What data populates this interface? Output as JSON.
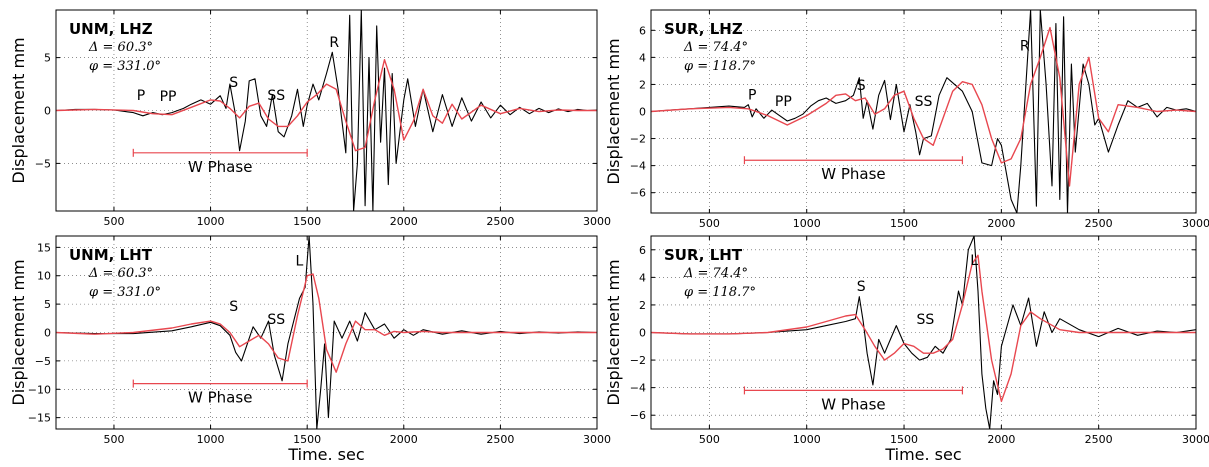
{
  "colors": {
    "observed": "#000000",
    "synthetic": "#e8474f",
    "wphase_bracket": "#e8474f"
  },
  "chart_data": [
    {
      "type": "line",
      "station": "UNM, LHZ",
      "delta": "Δ = 60.3°",
      "phi": "φ = 331.0°",
      "ylabel": "Displacement mm",
      "xlabel": "",
      "xlim": [
        200,
        3000
      ],
      "ylim": [
        -9.5,
        9.5
      ],
      "yticks": [
        -5,
        0,
        5
      ],
      "xticks": [
        500,
        1000,
        1500,
        2000,
        2500,
        3000
      ],
      "wphase": {
        "label": "W Phase",
        "x_start": 600,
        "x_end": 1500,
        "y": -4.0
      },
      "phases": [
        {
          "label": "P",
          "x": 640,
          "y": 1.0
        },
        {
          "label": "PP",
          "x": 780,
          "y": 0.9
        },
        {
          "label": "S",
          "x": 1120,
          "y": 2.2
        },
        {
          "label": "SS",
          "x": 1340,
          "y": 1.0
        },
        {
          "label": "R",
          "x": 1640,
          "y": 6.0
        }
      ],
      "series": [
        {
          "name": "observed",
          "x": [
            200,
            300,
            400,
            500,
            560,
            600,
            650,
            700,
            750,
            800,
            860,
            900,
            950,
            1000,
            1050,
            1080,
            1100,
            1130,
            1150,
            1180,
            1200,
            1230,
            1260,
            1290,
            1320,
            1350,
            1380,
            1420,
            1450,
            1480,
            1500,
            1530,
            1560,
            1600,
            1630,
            1660,
            1700,
            1720,
            1740,
            1760,
            1780,
            1800,
            1820,
            1840,
            1860,
            1880,
            1900,
            1920,
            1940,
            1960,
            1980,
            2000,
            2020,
            2060,
            2100,
            2150,
            2200,
            2250,
            2300,
            2350,
            2400,
            2450,
            2500,
            2550,
            2600,
            2650,
            2700,
            2750,
            2800,
            2850,
            2900,
            2950,
            3000
          ],
          "y": [
            0,
            0.1,
            0.1,
            0.05,
            -0.1,
            -0.2,
            -0.5,
            -0.2,
            -0.4,
            -0.2,
            0.2,
            0.6,
            1.0,
            0.6,
            1.4,
            0.2,
            2.5,
            -0.5,
            -3.8,
            -1.0,
            2.8,
            3.0,
            -0.5,
            -1.5,
            1.5,
            -2.0,
            -2.5,
            -0.5,
            2.0,
            -1.5,
            0.5,
            2.5,
            1.0,
            3.5,
            5.5,
            2.0,
            -4.0,
            9.0,
            -9.5,
            -5.0,
            9.5,
            -9.0,
            5.0,
            -9.5,
            8.0,
            -3.0,
            4.0,
            -7.0,
            3.5,
            -5.0,
            -2.0,
            1.0,
            3.0,
            -1.5,
            2.0,
            -2.0,
            1.5,
            -1.5,
            1.2,
            -1.0,
            0.8,
            -0.7,
            0.5,
            -0.4,
            0.3,
            -0.3,
            0.2,
            -0.2,
            0.15,
            -0.1,
            0.1,
            0,
            0.05
          ]
        },
        {
          "name": "synthetic",
          "x": [
            200,
            400,
            600,
            700,
            800,
            900,
            1000,
            1050,
            1100,
            1150,
            1200,
            1250,
            1300,
            1350,
            1400,
            1450,
            1500,
            1550,
            1600,
            1650,
            1700,
            1750,
            1800,
            1850,
            1900,
            1950,
            2000,
            2050,
            2100,
            2150,
            2200,
            2250,
            2300,
            2400,
            2500,
            2600,
            2700,
            2800,
            2900,
            3000
          ],
          "y": [
            0,
            0.1,
            0,
            -0.3,
            -0.4,
            0.3,
            1.0,
            0.9,
            0.2,
            -0.7,
            0.4,
            0.7,
            -0.8,
            -1.5,
            -1.5,
            -0.5,
            0.8,
            1.5,
            2.5,
            2.0,
            -1.0,
            -3.8,
            -3.5,
            1.0,
            4.8,
            2.0,
            -2.8,
            -1.0,
            2.0,
            -0.5,
            -1.2,
            0.6,
            -0.8,
            0.5,
            -0.3,
            0.2,
            -0.1,
            0.05,
            0,
            0
          ]
        }
      ]
    },
    {
      "type": "line",
      "station": "SUR, LHZ",
      "delta": "Δ = 74.4°",
      "phi": "φ = 118.7°",
      "ylabel": "Displacement mm",
      "xlabel": "",
      "xlim": [
        200,
        3000
      ],
      "ylim": [
        -7.5,
        7.5
      ],
      "yticks": [
        -6,
        -4,
        -2,
        0,
        2,
        4,
        6
      ],
      "xticks": [
        500,
        1000,
        1500,
        2000,
        2500,
        3000
      ],
      "wphase": {
        "label": "W Phase",
        "x_start": 680,
        "x_end": 1800,
        "y": -3.6
      },
      "phases": [
        {
          "label": "P",
          "x": 720,
          "y": 0.9
        },
        {
          "label": "PP",
          "x": 880,
          "y": 0.4
        },
        {
          "label": "S",
          "x": 1280,
          "y": 1.6
        },
        {
          "label": "SS",
          "x": 1600,
          "y": 0.4
        },
        {
          "label": "R",
          "x": 2120,
          "y": 4.5
        }
      ],
      "series": [
        {
          "name": "observed",
          "x": [
            200,
            300,
            400,
            500,
            600,
            680,
            700,
            720,
            740,
            780,
            820,
            860,
            900,
            940,
            980,
            1020,
            1060,
            1100,
            1150,
            1200,
            1240,
            1270,
            1290,
            1310,
            1340,
            1370,
            1400,
            1430,
            1460,
            1500,
            1530,
            1560,
            1580,
            1600,
            1640,
            1680,
            1720,
            1760,
            1800,
            1850,
            1900,
            1950,
            1980,
            2000,
            2050,
            2080,
            2100,
            2150,
            2180,
            2200,
            2230,
            2260,
            2280,
            2300,
            2320,
            2340,
            2360,
            2380,
            2420,
            2450,
            2480,
            2500,
            2550,
            2600,
            2650,
            2700,
            2750,
            2800,
            2850,
            2900,
            2950,
            3000
          ],
          "y": [
            0,
            0.1,
            0.2,
            0.3,
            0.4,
            0.3,
            0.5,
            -0.4,
            0.2,
            -0.5,
            0.1,
            -0.3,
            -0.7,
            -0.5,
            -0.2,
            0.4,
            0.8,
            1.0,
            0.6,
            0.8,
            1.2,
            2.5,
            -0.5,
            0.8,
            -1.3,
            1.2,
            2.3,
            -0.6,
            2.0,
            -1.5,
            0.5,
            -1.5,
            -3.2,
            -2.0,
            -1.8,
            1.2,
            2.5,
            2.0,
            1.5,
            0.0,
            -3.8,
            -4.0,
            -2.0,
            -2.5,
            -6.5,
            -7.5,
            -4.0,
            7.5,
            -7.0,
            7.5,
            2.0,
            -5.5,
            6.5,
            -6.5,
            7.0,
            -7.5,
            3.5,
            -3.0,
            3.5,
            2.0,
            -1.0,
            -0.5,
            -3.0,
            -1.0,
            0.8,
            0.3,
            0.6,
            -0.4,
            0.3,
            0.1,
            0.2,
            0.0
          ]
        },
        {
          "name": "synthetic",
          "x": [
            200,
            400,
            600,
            700,
            800,
            900,
            1000,
            1100,
            1150,
            1200,
            1250,
            1300,
            1350,
            1400,
            1450,
            1500,
            1550,
            1600,
            1650,
            1700,
            1750,
            1800,
            1850,
            1900,
            1950,
            2000,
            2050,
            2100,
            2150,
            2200,
            2250,
            2300,
            2350,
            2400,
            2450,
            2500,
            2550,
            2600,
            2700,
            2800,
            2900,
            3000
          ],
          "y": [
            0,
            0.2,
            0.3,
            0.2,
            -0.3,
            -1.0,
            -0.3,
            0.6,
            1.2,
            1.3,
            0.8,
            1.0,
            -0.2,
            0.2,
            1.2,
            1.5,
            -0.5,
            -2.0,
            -2.5,
            -0.5,
            1.5,
            2.2,
            2.0,
            0.5,
            -2.0,
            -3.8,
            -3.5,
            -2.0,
            2.0,
            4.0,
            6.2,
            2.5,
            -5.5,
            2.0,
            4.0,
            -0.5,
            -1.5,
            0.5,
            0.3,
            0.0,
            0.1,
            0.0
          ]
        }
      ]
    },
    {
      "type": "line",
      "station": "UNM, LHT",
      "delta": "Δ = 60.3°",
      "phi": "φ = 331.0°",
      "ylabel": "Displacement mm",
      "xlabel": "Time. sec",
      "xlim": [
        200,
        3000
      ],
      "ylim": [
        -17,
        17
      ],
      "yticks": [
        -15,
        -10,
        -5,
        0,
        5,
        10,
        15
      ],
      "xticks": [
        500,
        1000,
        1500,
        2000,
        2500,
        3000
      ],
      "wphase": {
        "label": "W Phase",
        "x_start": 600,
        "x_end": 1500,
        "y": -9.0
      },
      "phases": [
        {
          "label": "S",
          "x": 1120,
          "y": 3.8
        },
        {
          "label": "SS",
          "x": 1340,
          "y": 1.5
        },
        {
          "label": "L",
          "x": 1460,
          "y": 11.8
        }
      ],
      "series": [
        {
          "name": "observed",
          "x": [
            200,
            400,
            600,
            800,
            900,
            1000,
            1050,
            1100,
            1130,
            1160,
            1190,
            1220,
            1260,
            1300,
            1330,
            1370,
            1400,
            1430,
            1460,
            1490,
            1510,
            1530,
            1550,
            1570,
            1590,
            1610,
            1640,
            1680,
            1720,
            1760,
            1800,
            1850,
            1900,
            1950,
            2000,
            2050,
            2100,
            2200,
            2300,
            2400,
            2500,
            2600,
            2700,
            2800,
            2900,
            3000
          ],
          "y": [
            0,
            -0.2,
            -0.2,
            0.3,
            1.0,
            1.8,
            1.2,
            -0.5,
            -3.5,
            -5.0,
            -2.0,
            1.0,
            -1.0,
            2.0,
            -4.0,
            -8.5,
            -2.0,
            2.0,
            6.0,
            8.0,
            17.0,
            5.0,
            -17.0,
            -10.0,
            -2.0,
            -15.0,
            2.0,
            -1.0,
            2.0,
            -1.5,
            3.5,
            0.5,
            1.5,
            -1.0,
            0.5,
            -0.5,
            0.5,
            -0.3,
            0.3,
            -0.3,
            0.2,
            -0.2,
            0.1,
            -0.1,
            0.1,
            0.0
          ]
        },
        {
          "name": "synthetic",
          "x": [
            200,
            400,
            600,
            800,
            900,
            1000,
            1050,
            1100,
            1150,
            1200,
            1250,
            1300,
            1350,
            1400,
            1450,
            1500,
            1530,
            1560,
            1600,
            1650,
            1700,
            1750,
            1800,
            1850,
            1900,
            1950,
            2000,
            2100,
            2200,
            2400,
            2600,
            2800,
            3000
          ],
          "y": [
            0,
            -0.3,
            0.0,
            0.8,
            1.5,
            2.0,
            1.5,
            0.0,
            -2.5,
            -1.5,
            -0.5,
            -2.0,
            -4.5,
            -5.0,
            3.0,
            10.0,
            10.3,
            6.0,
            -3.0,
            -7.0,
            -2.0,
            2.0,
            0.5,
            0.5,
            -0.5,
            0.2,
            0.0,
            0.2,
            0.0,
            0.0,
            0.0,
            0.0,
            0.0
          ]
        }
      ]
    },
    {
      "type": "line",
      "station": "SUR, LHT",
      "delta": "Δ = 74.4°",
      "phi": "φ = 118.7°",
      "ylabel": "Displacement mm",
      "xlabel": "Time. sec",
      "xlim": [
        200,
        3000
      ],
      "ylim": [
        -7,
        7
      ],
      "yticks": [
        -6,
        -4,
        -2,
        0,
        2,
        4,
        6
      ],
      "xticks": [
        500,
        1000,
        1500,
        2000,
        2500,
        3000
      ],
      "wphase": {
        "label": "W Phase",
        "x_start": 680,
        "x_end": 1800,
        "y": -4.2
      },
      "phases": [
        {
          "label": "S",
          "x": 1280,
          "y": 3.0
        },
        {
          "label": "SS",
          "x": 1610,
          "y": 0.6
        },
        {
          "label": "L",
          "x": 1860,
          "y": 4.9
        }
      ],
      "series": [
        {
          "name": "observed",
          "x": [
            200,
            400,
            600,
            800,
            1000,
            1100,
            1200,
            1250,
            1270,
            1290,
            1310,
            1340,
            1370,
            1400,
            1430,
            1460,
            1500,
            1540,
            1580,
            1620,
            1660,
            1700,
            1740,
            1780,
            1800,
            1830,
            1860,
            1880,
            1900,
            1920,
            1940,
            1960,
            1980,
            2000,
            2030,
            2060,
            2100,
            2140,
            2180,
            2220,
            2260,
            2300,
            2400,
            2500,
            2600,
            2700,
            2800,
            2900,
            3000
          ],
          "y": [
            0,
            -0.1,
            -0.1,
            0.0,
            0.2,
            0.5,
            0.8,
            1.0,
            2.6,
            0.8,
            -1.5,
            -3.8,
            -0.5,
            -1.5,
            -0.5,
            0.5,
            -0.8,
            -1.5,
            -2.0,
            -1.8,
            -1.0,
            -1.5,
            -0.5,
            3.0,
            2.0,
            6.0,
            7.0,
            3.0,
            -3.0,
            -5.5,
            -7.0,
            -3.5,
            -4.5,
            -1.0,
            0.5,
            2.0,
            0.5,
            2.5,
            -1.0,
            1.5,
            0.0,
            1.0,
            0.2,
            -0.3,
            0.3,
            -0.2,
            0.1,
            0.0,
            0.2
          ]
        },
        {
          "name": "synthetic",
          "x": [
            200,
            400,
            600,
            800,
            1000,
            1100,
            1200,
            1250,
            1300,
            1350,
            1400,
            1450,
            1500,
            1550,
            1600,
            1650,
            1700,
            1750,
            1800,
            1850,
            1880,
            1900,
            1950,
            2000,
            2050,
            2100,
            2150,
            2200,
            2300,
            2400,
            2600,
            2800,
            3000
          ],
          "y": [
            0,
            -0.1,
            -0.1,
            0.0,
            0.4,
            0.8,
            1.2,
            1.3,
            0.2,
            -1.0,
            -2.0,
            -1.5,
            -0.8,
            -1.0,
            -1.5,
            -1.5,
            -1.2,
            -0.5,
            2.0,
            5.0,
            5.6,
            3.0,
            -2.0,
            -5.0,
            -3.0,
            0.5,
            1.5,
            1.0,
            0.2,
            0.0,
            0.0,
            0.0,
            0.0
          ]
        }
      ]
    }
  ]
}
